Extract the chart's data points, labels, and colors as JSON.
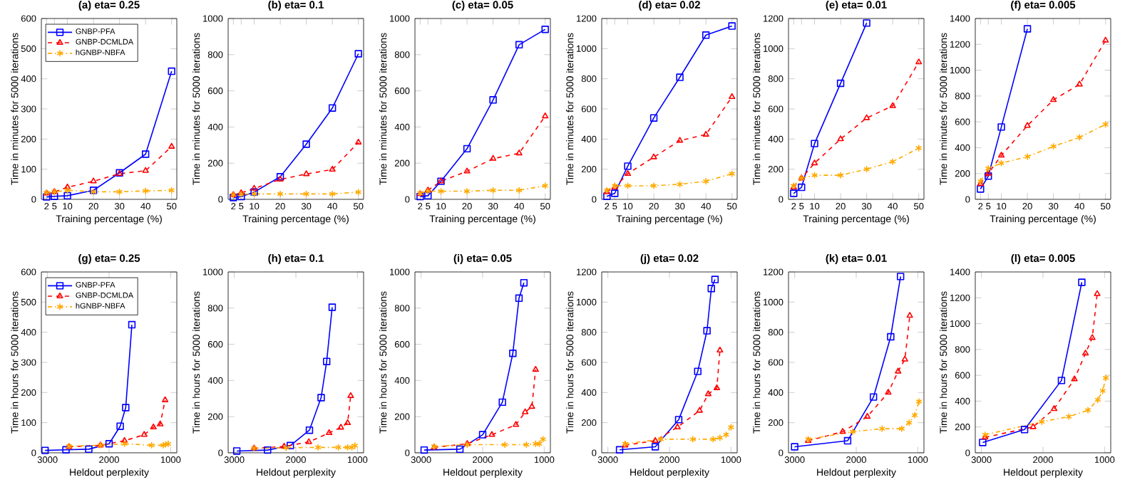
{
  "chart_data": [
    {
      "type": "line",
      "title": "(a) eta= 0.25",
      "xlabel": "Training percentage (%)",
      "ylabel": "Time in minutes for 5000 iterations",
      "x": [
        2,
        5,
        10,
        20,
        30,
        40,
        50
      ],
      "xlim": [
        0,
        52
      ],
      "ylim": [
        0,
        600
      ],
      "xticks": [
        2,
        5,
        10,
        20,
        30,
        40,
        50
      ],
      "yticks": [
        0,
        100,
        200,
        300,
        400,
        500,
        600
      ],
      "legend": "top left",
      "series": [
        {
          "name": "GNBP-PFA",
          "color": "#0000ff",
          "marker": "square",
          "line_style": "solid",
          "values": [
            8,
            10,
            12,
            30,
            88,
            150,
            425
          ]
        },
        {
          "name": "GNBP-DCMLDA",
          "color": "#ff0000",
          "marker": "triangle",
          "line_style": "dashed",
          "values": [
            20,
            25,
            40,
            60,
            85,
            95,
            175
          ]
        },
        {
          "name": "hGNBP-NBFA",
          "color": "#ffaa00",
          "marker": "cross",
          "line_style": "dashdot",
          "values": [
            22,
            25,
            30,
            25,
            25,
            28,
            30
          ]
        }
      ]
    },
    {
      "type": "line",
      "title": "(b) eta= 0.1",
      "xlabel": "Training percentage (%)",
      "ylabel": "Time in minutes for 5000 iterations",
      "x": [
        2,
        5,
        10,
        20,
        30,
        40,
        50
      ],
      "xlim": [
        0,
        52
      ],
      "ylim": [
        0,
        1000
      ],
      "xticks": [
        2,
        5,
        10,
        20,
        30,
        40,
        50
      ],
      "yticks": [
        0,
        200,
        400,
        600,
        800,
        1000
      ],
      "series": [
        {
          "color": "#0000ff",
          "marker": "square",
          "line_style": "solid",
          "values": [
            10,
            15,
            40,
            125,
            305,
            505,
            805
          ]
        },
        {
          "color": "#ff0000",
          "marker": "triangle",
          "line_style": "dashed",
          "values": [
            25,
            35,
            60,
            110,
            140,
            165,
            315
          ]
        },
        {
          "color": "#ffaa00",
          "marker": "cross",
          "line_style": "dashdot",
          "values": [
            25,
            28,
            30,
            30,
            30,
            30,
            40
          ]
        }
      ]
    },
    {
      "type": "line",
      "title": "(c) eta= 0.05",
      "xlabel": "Training percentage (%)",
      "ylabel": "Time in minutes for 5000 iterations",
      "x": [
        2,
        5,
        10,
        20,
        30,
        40,
        50
      ],
      "xlim": [
        0,
        52
      ],
      "ylim": [
        0,
        1000
      ],
      "xticks": [
        2,
        5,
        10,
        20,
        30,
        40,
        50
      ],
      "yticks": [
        0,
        200,
        400,
        600,
        800,
        1000
      ],
      "series": [
        {
          "color": "#0000ff",
          "marker": "square",
          "line_style": "solid",
          "values": [
            15,
            20,
            100,
            280,
            550,
            855,
            940
          ]
        },
        {
          "color": "#ff0000",
          "marker": "triangle",
          "line_style": "dashed",
          "values": [
            30,
            50,
            100,
            155,
            225,
            255,
            460
          ]
        },
        {
          "color": "#ffaa00",
          "marker": "cross",
          "line_style": "dashdot",
          "values": [
            35,
            45,
            45,
            45,
            50,
            50,
            75
          ]
        }
      ]
    },
    {
      "type": "line",
      "title": "(d) eta= 0.02",
      "xlabel": "Training percentage (%)",
      "ylabel": "Time in minutes for 5000 iterations",
      "x": [
        2,
        5,
        10,
        20,
        30,
        40,
        50
      ],
      "xlim": [
        0,
        52
      ],
      "ylim": [
        0,
        1200
      ],
      "xticks": [
        2,
        5,
        10,
        20,
        30,
        40,
        50
      ],
      "yticks": [
        0,
        200,
        400,
        600,
        800,
        1000,
        1200
      ],
      "series": [
        {
          "color": "#0000ff",
          "marker": "square",
          "line_style": "solid",
          "values": [
            20,
            40,
            220,
            540,
            810,
            1090,
            1150
          ]
        },
        {
          "color": "#ff0000",
          "marker": "triangle",
          "line_style": "dashed",
          "values": [
            50,
            80,
            170,
            280,
            390,
            430,
            680
          ]
        },
        {
          "color": "#ffaa00",
          "marker": "cross",
          "line_style": "dashdot",
          "values": [
            60,
            90,
            90,
            90,
            100,
            120,
            170
          ]
        }
      ]
    },
    {
      "type": "line",
      "title": "(e) eta= 0.01",
      "xlabel": "Training percentage (%)",
      "ylabel": "Time in minutes for 5000 iterations",
      "x": [
        2,
        5,
        10,
        20,
        30,
        40,
        50
      ],
      "xlim": [
        0,
        52
      ],
      "ylim": [
        0,
        1200
      ],
      "xticks": [
        2,
        5,
        10,
        20,
        30,
        40,
        50
      ],
      "yticks": [
        0,
        200,
        400,
        600,
        800,
        1000,
        1200
      ],
      "series": [
        {
          "color": "#0000ff",
          "marker": "square",
          "line_style": "solid",
          "x": [
            2,
            5,
            10,
            20,
            30
          ],
          "values": [
            40,
            80,
            370,
            770,
            1170
          ]
        },
        {
          "color": "#ff0000",
          "marker": "triangle",
          "line_style": "dashed",
          "values": [
            80,
            140,
            240,
            400,
            540,
            620,
            910
          ]
        },
        {
          "color": "#ffaa00",
          "marker": "cross",
          "line_style": "dashdot",
          "values": [
            90,
            140,
            160,
            160,
            200,
            250,
            340
          ]
        }
      ]
    },
    {
      "type": "line",
      "title": "(f) eta= 0.005",
      "xlabel": "Training percentage (%)",
      "ylabel": "Time in minutes for 5000 iterations",
      "x": [
        2,
        5,
        10,
        20,
        30,
        40,
        50
      ],
      "xlim": [
        0,
        52
      ],
      "ylim": [
        0,
        1400
      ],
      "xticks": [
        2,
        5,
        10,
        20,
        30,
        40,
        50
      ],
      "yticks": [
        0,
        200,
        400,
        600,
        800,
        1000,
        1200,
        1400
      ],
      "series": [
        {
          "color": "#0000ff",
          "marker": "square",
          "line_style": "solid",
          "x": [
            2,
            5,
            10,
            20
          ],
          "values": [
            80,
            180,
            560,
            1320
          ]
        },
        {
          "color": "#ff0000",
          "marker": "triangle",
          "line_style": "dashed",
          "values": [
            120,
            200,
            340,
            570,
            770,
            890,
            1230
          ]
        },
        {
          "color": "#ffaa00",
          "marker": "cross",
          "line_style": "dashdot",
          "values": [
            140,
            240,
            280,
            330,
            410,
            480,
            580
          ]
        }
      ]
    },
    {
      "type": "line",
      "title": "(g) eta= 0.25",
      "xlabel": "Heldout perplexity",
      "ylabel": "Time in hours for 5000 iterations",
      "xlim": [
        3100,
        900
      ],
      "ylim": [
        0,
        600
      ],
      "xticks": [
        3000,
        2000,
        1000
      ],
      "yticks": [
        0,
        100,
        200,
        300,
        400,
        500,
        600
      ],
      "legend": "top left",
      "series": [
        {
          "name": "GNBP-PFA",
          "color": "#0000ff",
          "marker": "square",
          "line_style": "solid",
          "x": [
            3040,
            2700,
            2330,
            2000,
            1820,
            1730,
            1630
          ],
          "values": [
            8,
            10,
            12,
            30,
            88,
            150,
            425
          ]
        },
        {
          "name": "GNBP-DCMLDA",
          "color": "#ff0000",
          "marker": "triangle",
          "line_style": "dashed",
          "x": [
            2650,
            2140,
            1750,
            1430,
            1280,
            1170,
            1090
          ],
          "values": [
            20,
            25,
            40,
            60,
            85,
            95,
            175
          ]
        },
        {
          "name": "hGNBP-NBFA",
          "color": "#ffaa00",
          "marker": "cross",
          "line_style": "dashdot",
          "x": [
            2650,
            2140,
            1750,
            1310,
            1120,
            1080,
            1040
          ],
          "values": [
            22,
            25,
            30,
            25,
            25,
            28,
            30
          ]
        }
      ]
    },
    {
      "type": "line",
      "title": "(h) eta= 0.1",
      "xlabel": "Heldout perplexity",
      "ylabel": "Time in hours for 5000 iterations",
      "xlim": [
        3100,
        900
      ],
      "ylim": [
        0,
        1000
      ],
      "xticks": [
        3000,
        2000,
        1000
      ],
      "yticks": [
        0,
        200,
        400,
        600,
        800,
        1000
      ],
      "series": [
        {
          "color": "#0000ff",
          "marker": "square",
          "line_style": "solid",
          "x": [
            2960,
            2460,
            2090,
            1780,
            1590,
            1500,
            1410
          ],
          "values": [
            10,
            15,
            40,
            125,
            305,
            505,
            805
          ]
        },
        {
          "color": "#ff0000",
          "marker": "triangle",
          "line_style": "dashed",
          "x": [
            2680,
            2190,
            1790,
            1460,
            1270,
            1160,
            1110
          ],
          "values": [
            25,
            35,
            60,
            110,
            140,
            165,
            315
          ]
        },
        {
          "color": "#ffaa00",
          "marker": "cross",
          "line_style": "dashdot",
          "x": [
            2680,
            2160,
            1640,
            1310,
            1160,
            1090,
            1040
          ],
          "values": [
            25,
            28,
            30,
            30,
            30,
            30,
            40
          ]
        }
      ]
    },
    {
      "type": "line",
      "title": "(i) eta= 0.05",
      "xlabel": "Heldout perplexity",
      "ylabel": "Time in hours for 5000 iterations",
      "xlim": [
        3100,
        900
      ],
      "ylim": [
        0,
        1000
      ],
      "xticks": [
        3000,
        2000,
        1000
      ],
      "yticks": [
        0,
        200,
        400,
        600,
        800,
        1000
      ],
      "series": [
        {
          "color": "#0000ff",
          "marker": "square",
          "line_style": "solid",
          "x": [
            2950,
            2370,
            2000,
            1680,
            1510,
            1410,
            1330
          ],
          "values": [
            15,
            20,
            100,
            280,
            550,
            855,
            940
          ]
        },
        {
          "color": "#ff0000",
          "marker": "triangle",
          "line_style": "dashed",
          "x": [
            2790,
            2250,
            1850,
            1460,
            1310,
            1200,
            1140
          ],
          "values": [
            30,
            50,
            100,
            155,
            225,
            255,
            460
          ]
        },
        {
          "color": "#ffaa00",
          "marker": "cross",
          "line_style": "dashdot",
          "x": [
            2790,
            2250,
            1640,
            1290,
            1140,
            1080,
            1020
          ],
          "values": [
            35,
            45,
            45,
            45,
            50,
            50,
            75
          ]
        }
      ]
    },
    {
      "type": "line",
      "title": "(j) eta= 0.02",
      "xlabel": "Heldout perplexity",
      "ylabel": "Time in hours for 5000 iterations",
      "xlim": [
        3100,
        900
      ],
      "ylim": [
        0,
        1200
      ],
      "xticks": [
        3000,
        2000,
        1000
      ],
      "yticks": [
        0,
        200,
        400,
        600,
        800,
        1000,
        1200
      ],
      "series": [
        {
          "color": "#0000ff",
          "marker": "square",
          "line_style": "solid",
          "x": [
            2810,
            2230,
            1850,
            1540,
            1390,
            1320,
            1260
          ],
          "values": [
            20,
            40,
            220,
            540,
            810,
            1090,
            1150
          ]
        },
        {
          "color": "#ff0000",
          "marker": "triangle",
          "line_style": "dashed",
          "x": [
            2720,
            2230,
            1870,
            1510,
            1370,
            1230,
            1180
          ],
          "values": [
            50,
            80,
            170,
            280,
            390,
            430,
            680
          ]
        },
        {
          "color": "#ffaa00",
          "marker": "cross",
          "line_style": "dashdot",
          "x": [
            2720,
            2140,
            1620,
            1290,
            1180,
            1080,
            1000
          ],
          "values": [
            60,
            90,
            90,
            90,
            100,
            120,
            170
          ]
        }
      ]
    },
    {
      "type": "line",
      "title": "(k) eta= 0.01",
      "xlabel": "Heldout perplexity",
      "ylabel": "Time in hours for 5000 iterations",
      "xlim": [
        3100,
        900
      ],
      "ylim": [
        0,
        1200
      ],
      "xticks": [
        3000,
        2000,
        1000
      ],
      "yticks": [
        0,
        200,
        400,
        600,
        800,
        1000,
        1200
      ],
      "series": [
        {
          "color": "#0000ff",
          "marker": "square",
          "line_style": "solid",
          "x": [
            3000,
            2140,
            1720,
            1440,
            1280
          ],
          "values": [
            40,
            80,
            370,
            770,
            1170
          ]
        },
        {
          "color": "#ff0000",
          "marker": "triangle",
          "line_style": "dashed",
          "x": [
            2780,
            2220,
            1820,
            1480,
            1320,
            1210,
            1130
          ],
          "values": [
            80,
            140,
            240,
            400,
            540,
            620,
            910
          ]
        },
        {
          "color": "#ffaa00",
          "marker": "cross",
          "line_style": "dashdot",
          "x": [
            2780,
            2060,
            1580,
            1260,
            1140,
            1050,
            980
          ],
          "values": [
            90,
            140,
            160,
            160,
            200,
            250,
            340
          ]
        }
      ]
    },
    {
      "type": "line",
      "title": "(l) eta= 0.005",
      "xlabel": "Heldout perplexity",
      "ylabel": "Time in hours for 5000 iterations",
      "xlim": [
        3100,
        900
      ],
      "ylim": [
        0,
        1400
      ],
      "xticks": [
        3000,
        2000,
        1000
      ],
      "yticks": [
        0,
        200,
        400,
        600,
        800,
        1000,
        1200,
        1400
      ],
      "series": [
        {
          "color": "#0000ff",
          "marker": "square",
          "line_style": "solid",
          "x": [
            2980,
            2300,
            1700,
            1370
          ],
          "values": [
            80,
            180,
            560,
            1320
          ]
        },
        {
          "color": "#ff0000",
          "marker": "triangle",
          "line_style": "dashed",
          "x": [
            2940,
            2160,
            1820,
            1490,
            1310,
            1200,
            1120
          ],
          "values": [
            120,
            200,
            340,
            570,
            770,
            890,
            1230
          ]
        },
        {
          "color": "#ffaa00",
          "marker": "cross",
          "line_style": "dashdot",
          "x": [
            2940,
            2020,
            1580,
            1270,
            1110,
            1030,
            980
          ],
          "values": [
            140,
            240,
            280,
            330,
            410,
            480,
            580
          ]
        }
      ]
    }
  ]
}
